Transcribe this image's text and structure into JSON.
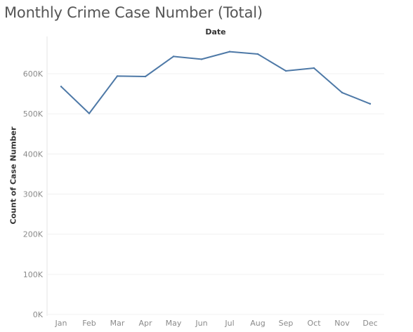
{
  "chart_data": {
    "type": "line",
    "title": "Monthly Crime Case Number (Total)",
    "xlabel": "Date",
    "ylabel": "Count of Case Number",
    "categories": [
      "Jan",
      "Feb",
      "Mar",
      "Apr",
      "May",
      "Jun",
      "Jul",
      "Aug",
      "Sep",
      "Oct",
      "Nov",
      "Dec"
    ],
    "series": [
      {
        "values": [
          568000,
          501000,
          594000,
          593000,
          643000,
          636000,
          655000,
          649000,
          607000,
          614000,
          553000,
          525000
        ]
      }
    ],
    "yticks": [
      0,
      100000,
      200000,
      300000,
      400000,
      500000,
      600000
    ],
    "ytick_labels": [
      "0K",
      "100K",
      "200K",
      "300K",
      "400K",
      "500K",
      "600K"
    ],
    "ylim": [
      0,
      680000
    ],
    "grid": true,
    "line_color": "#4e79a7"
  }
}
